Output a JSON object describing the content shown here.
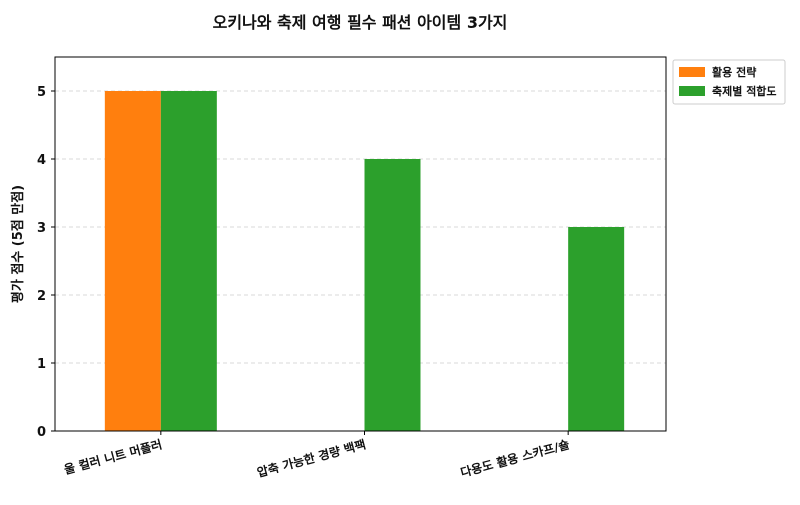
{
  "chart_data": {
    "type": "bar",
    "title": "오키나와 축제 여행 필수 패션 아이템 3가지",
    "ylabel": "평가 점수 (5점 만점)",
    "xlabel": "",
    "categories": [
      "울 컬러 니트 머플러",
      "압축 가능한 경량 백팩",
      "다용도 활용 스카프/숄"
    ],
    "series": [
      {
        "name": "활용 전략",
        "color": "#ff7f0e",
        "values": [
          5,
          0,
          0
        ]
      },
      {
        "name": "축제별 적합도",
        "color": "#2ca02c",
        "values": [
          5,
          4,
          3
        ]
      }
    ],
    "ylim": [
      0,
      5.5
    ],
    "yticks": [
      "0",
      "1",
      "2",
      "3",
      "4",
      "5"
    ],
    "grid": "y-dashed",
    "legend_position": "outside-top-right"
  }
}
